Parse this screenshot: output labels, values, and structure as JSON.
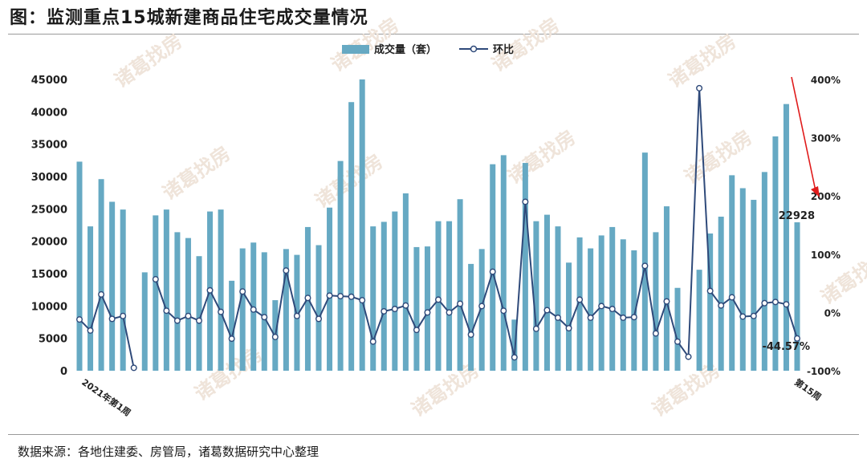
{
  "title": "图：监测重点15城新建商品住宅成交量情况",
  "source": "数据来源：各地住建委、房管局，诸葛数据研究中心整理",
  "watermark": "诸葛找房",
  "colors": {
    "bar": "#66a9c3",
    "line": "#2f4a7a",
    "arrow": "#e01b1b"
  },
  "chart_data": {
    "type": "bar",
    "title": "图：监测重点15城新建商品住宅成交量情况",
    "legend": {
      "position": "top-center",
      "items": [
        "成交量（套）",
        "环比"
      ]
    },
    "ylim_left": [
      0,
      45000
    ],
    "ylim_right": [
      -100,
      400
    ],
    "y_ticks_left": [
      "0",
      "5000",
      "10000",
      "15000",
      "20000",
      "25000",
      "30000",
      "35000",
      "40000",
      "45000"
    ],
    "y_ticks_right": [
      "-100%",
      "0%",
      "100%",
      "200%",
      "300%",
      "400%"
    ],
    "x_first_label": "2021年第1周",
    "x_last_label": "第15周",
    "grid": false,
    "series": [
      {
        "name": "成交量（套）",
        "type": "bar",
        "values": [
          32300,
          22300,
          29600,
          26100,
          24900,
          null,
          15200,
          24000,
          24900,
          21400,
          20500,
          17700,
          24600,
          24900,
          13900,
          18900,
          19800,
          18300,
          10900,
          18800,
          17900,
          22200,
          19400,
          25200,
          32400,
          41500,
          45000,
          22300,
          23000,
          24600,
          27400,
          19100,
          19200,
          23100,
          23100,
          26500,
          16500,
          18800,
          31900,
          33300,
          7900,
          32100,
          23100,
          24100,
          22300,
          16700,
          20600,
          18900,
          20900,
          22200,
          20300,
          18600,
          33700,
          21400,
          25400,
          12800,
          null,
          15600,
          21200,
          23800,
          30200,
          28200,
          26400,
          30700,
          36200,
          41200,
          22928
        ]
      },
      {
        "name": "环比",
        "type": "line",
        "unit": "%",
        "values": [
          -12,
          -31,
          31,
          -11,
          -6,
          -95,
          null,
          57,
          3,
          -14,
          -6,
          -14,
          38,
          1,
          -45,
          36,
          5,
          -8,
          -42,
          72,
          -6,
          25,
          -11,
          29,
          28,
          27,
          21,
          -50,
          2,
          6,
          12,
          -30,
          0,
          22,
          0,
          15,
          -38,
          11,
          70,
          3,
          -77,
          190,
          -28,
          4,
          -9,
          -27,
          22,
          -9,
          11,
          6,
          -9,
          -8,
          80,
          -36,
          19,
          -50,
          -76,
          385,
          37,
          12,
          26,
          -7,
          -6,
          16,
          18,
          14,
          -44.57
        ]
      }
    ],
    "annotations": [
      {
        "text": "22928",
        "target": "last bar value"
      },
      {
        "text": "-44.57%",
        "target": "last line value"
      }
    ]
  }
}
